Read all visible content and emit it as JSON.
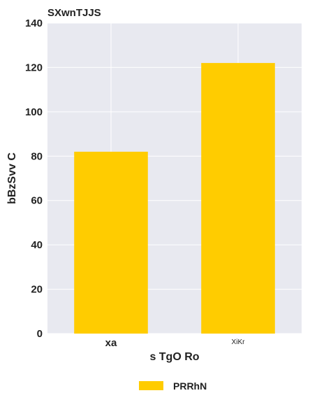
{
  "chart_data": {
    "type": "bar",
    "title": "SXwnTJJS",
    "xlabel": "s TgO  Ro",
    "ylabel": "bBzSvv C",
    "categories": [
      "xa",
      "XiKr"
    ],
    "series": [
      {
        "name": "PRRhN",
        "values": [
          82,
          122
        ],
        "color": "#ffcc00"
      }
    ],
    "ylim": [
      0,
      140
    ],
    "yticks": [
      "0",
      "20",
      "40",
      "60",
      "80",
      "100",
      "120",
      "140"
    ],
    "grid": true,
    "legend_position": "bottom-center",
    "background_color": "#e8e9f0",
    "grid_color": "#ffffff"
  }
}
